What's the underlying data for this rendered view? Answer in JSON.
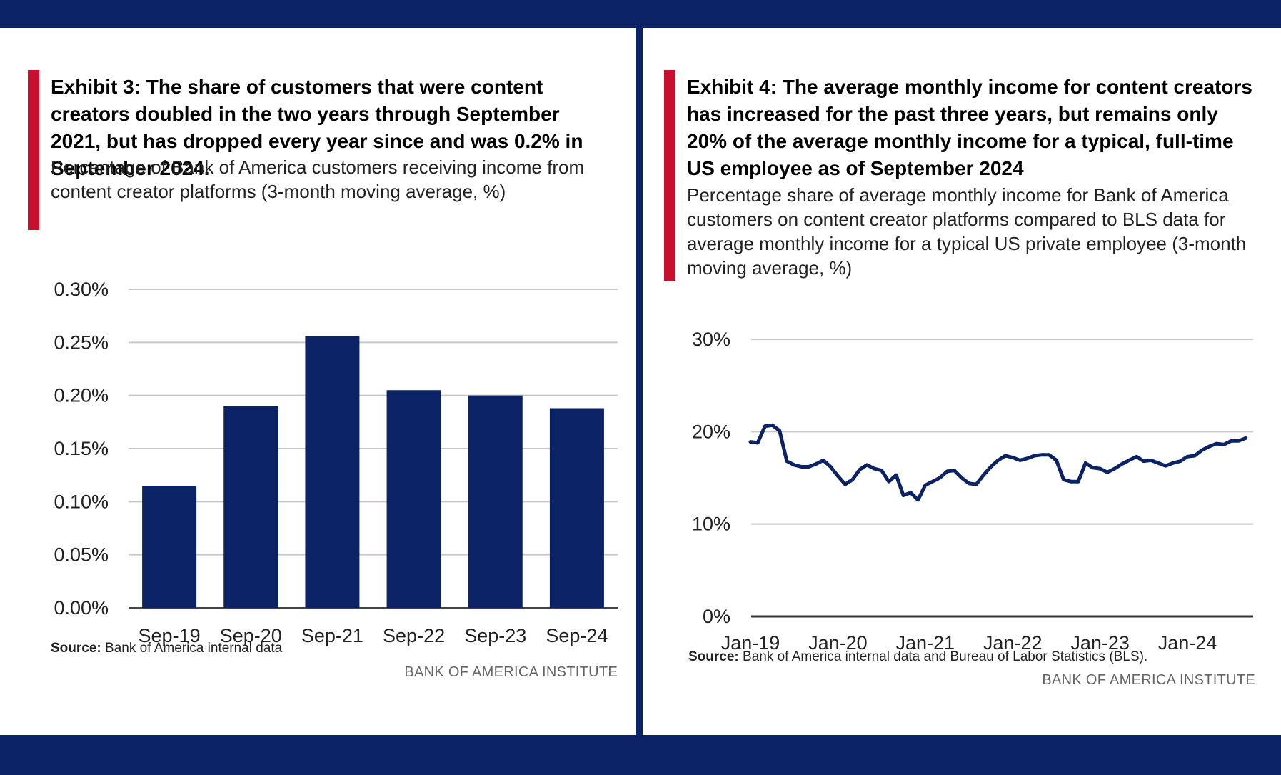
{
  "colors": {
    "navy": "#0b2265",
    "red": "#c8102e",
    "grid": "#c8c8c8"
  },
  "left": {
    "title": "Exhibit 3: The share of customers that were content creators doubled in the two years through September 2021, but has dropped every year since and was 0.2% in September 2024.",
    "subtitle": "Percentage of Bank of America customers receiving income from content creator platforms (3-month moving average, %)",
    "source_label": "Source:",
    "source_text": "Bank of America internal data",
    "brand": "BANK OF AMERICA INSTITUTE"
  },
  "right": {
    "title": "Exhibit 4: The average monthly income for content creators has increased for the past three years, but remains only 20% of the average monthly income for a typical, full-time US employee as of September 2024",
    "subtitle": "Percentage share of average monthly income for Bank of America customers on content creator platforms compared to BLS data for average monthly income for a typical US private employee (3-month moving average, %)",
    "source_label": "Source:",
    "source_text": "Bank of America internal data and Bureau of Labor Statistics (BLS).",
    "brand": "BANK OF AMERICA INSTITUTE"
  },
  "chart_data": [
    {
      "type": "bar",
      "title": "Exhibit 3: The share of customers that were content creators doubled in the two years through September 2021, but has dropped every year since and was 0.2% in September 2024.",
      "categories": [
        "Sep-19",
        "Sep-20",
        "Sep-21",
        "Sep-22",
        "Sep-23",
        "Sep-24"
      ],
      "values": [
        0.115,
        0.19,
        0.256,
        0.205,
        0.2,
        0.188
      ],
      "ylim": [
        0,
        0.3
      ],
      "yticks": [
        0,
        0.05,
        0.1,
        0.15,
        0.2,
        0.25,
        0.3
      ],
      "ytick_labels": [
        "0.00%",
        "0.05%",
        "0.10%",
        "0.15%",
        "0.20%",
        "0.25%",
        "0.30%"
      ],
      "grid": true,
      "color": "#0b2265"
    },
    {
      "type": "line",
      "title": "Exhibit 4: The average monthly income for content creators has increased for the past three years, but remains only 20% of the average monthly income for a typical, full-time US employee as of September 2024",
      "x_start": "2019-01",
      "x": [
        "2019-01",
        "2019-02",
        "2019-03",
        "2019-04",
        "2019-05",
        "2019-06",
        "2019-07",
        "2019-08",
        "2019-09",
        "2019-10",
        "2019-11",
        "2019-12",
        "2020-01",
        "2020-02",
        "2020-03",
        "2020-04",
        "2020-05",
        "2020-06",
        "2020-07",
        "2020-08",
        "2020-09",
        "2020-10",
        "2020-11",
        "2020-12",
        "2021-01",
        "2021-02",
        "2021-03",
        "2021-04",
        "2021-05",
        "2021-06",
        "2021-07",
        "2021-08",
        "2021-09",
        "2021-10",
        "2021-11",
        "2021-12",
        "2022-01",
        "2022-02",
        "2022-03",
        "2022-04",
        "2022-05",
        "2022-06",
        "2022-07",
        "2022-08",
        "2022-09",
        "2022-10",
        "2022-11",
        "2022-12",
        "2023-01",
        "2023-02",
        "2023-03",
        "2023-04",
        "2023-05",
        "2023-06",
        "2023-07",
        "2023-08",
        "2023-09",
        "2023-10",
        "2023-11",
        "2023-12",
        "2024-01",
        "2024-02",
        "2024-03",
        "2024-04",
        "2024-05",
        "2024-06",
        "2024-07",
        "2024-08",
        "2024-09"
      ],
      "values": [
        18.9,
        18.8,
        20.6,
        20.7,
        20.1,
        16.8,
        16.4,
        16.2,
        16.2,
        16.5,
        16.9,
        16.2,
        15.2,
        14.3,
        14.8,
        15.9,
        16.4,
        16.0,
        15.8,
        14.6,
        15.3,
        13.1,
        13.4,
        12.6,
        14.2,
        14.6,
        15.0,
        15.7,
        15.8,
        15.0,
        14.4,
        14.3,
        15.3,
        16.2,
        16.9,
        17.4,
        17.2,
        16.9,
        17.1,
        17.4,
        17.5,
        17.5,
        16.9,
        14.8,
        14.6,
        14.6,
        16.6,
        16.1,
        16.0,
        15.6,
        16.0,
        16.5,
        16.9,
        17.3,
        16.8,
        16.9,
        16.6,
        16.3,
        16.6,
        16.8,
        17.3,
        17.4,
        18.0,
        18.4,
        18.7,
        18.6,
        19.0,
        19.0,
        19.3
      ],
      "ylim": [
        0,
        30
      ],
      "yticks": [
        0,
        10,
        20,
        30
      ],
      "ytick_labels": [
        "0%",
        "10%",
        "20%",
        "30%"
      ],
      "xtick_labels": [
        "Jan-19",
        "Jan-20",
        "Jan-21",
        "Jan-22",
        "Jan-23",
        "Jan-24"
      ],
      "grid": true,
      "color": "#0b2265"
    }
  ]
}
